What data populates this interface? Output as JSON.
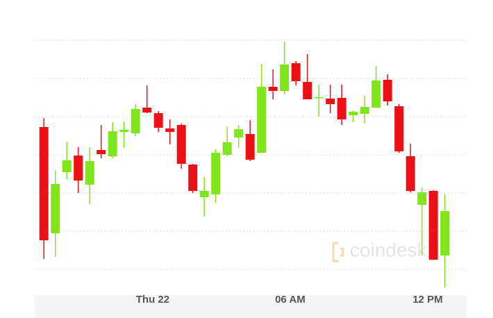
{
  "chart_data": {
    "type": "candlestick",
    "watermark": "coindesk",
    "x": [
      -4.75,
      -4.25,
      -3.75,
      -3.25,
      -2.75,
      -2.25,
      -1.75,
      -1.25,
      -0.75,
      -0.25,
      0.25,
      0.75,
      1.25,
      1.75,
      2.25,
      2.75,
      3.25,
      3.75,
      4.25,
      4.75,
      5.25,
      5.75,
      6.25,
      6.75,
      7.25,
      7.75,
      8.25,
      8.75,
      9.25,
      9.75,
      10.25,
      10.75,
      11.25,
      11.75,
      12.25,
      12.75
    ],
    "open": [
      260,
      107,
      195,
      219,
      177,
      227,
      218,
      253,
      251,
      288,
      280,
      258,
      263,
      206,
      159,
      163,
      220,
      245,
      250,
      223,
      318,
      312,
      352,
      325,
      302,
      301,
      302,
      277,
      279,
      288,
      328,
      290,
      218,
      148,
      168,
      75
    ],
    "high": [
      273,
      198,
      239,
      231,
      231,
      263,
      267,
      268,
      293,
      320,
      283,
      271,
      265,
      207,
      188,
      228,
      261,
      263,
      270,
      351,
      343,
      383,
      355,
      365,
      321,
      321,
      321,
      284,
      305,
      348,
      336,
      293,
      236,
      173,
      169,
      163
    ],
    "low": [
      70,
      73,
      185,
      165,
      149,
      215,
      215,
      230,
      247,
      280,
      253,
      235,
      200,
      165,
      131,
      151,
      218,
      230,
      211,
      223,
      300,
      307,
      320,
      300,
      275,
      280,
      263,
      267,
      265,
      287,
      291,
      223,
      166,
      75,
      69,
      29
    ],
    "close": [
      97,
      178,
      212,
      183,
      211,
      221,
      254,
      256,
      286,
      281,
      259,
      253,
      207,
      168,
      168,
      223,
      238,
      257,
      213,
      318,
      312,
      350,
      326,
      300,
      303,
      293,
      271,
      282,
      289,
      327,
      297,
      225,
      168,
      166,
      69,
      139
    ],
    "up_color": "#7ee61a",
    "down_color": "#ec1016",
    "xlim": [
      -5.15,
      13.7
    ],
    "xticks": [
      {
        "value": 0,
        "label": "Thu 22"
      },
      {
        "value": 6,
        "label": "06 AM"
      },
      {
        "value": 12,
        "label": "12 PM"
      }
    ],
    "ylim": [
      0,
      413
    ],
    "yticks": [
      55,
      110,
      165,
      220,
      275,
      330,
      385
    ],
    "grid": true
  }
}
